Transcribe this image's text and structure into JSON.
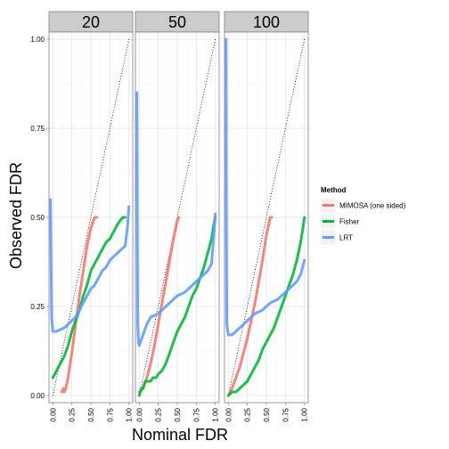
{
  "chart_data": {
    "type": "line",
    "xlabel": "Nominal FDR",
    "ylabel": "Observed FDR",
    "xlim": [
      0,
      1
    ],
    "ylim": [
      0,
      1
    ],
    "x_ticks": [
      "0.00",
      "0.25",
      "0.50",
      "0.75",
      "1.00"
    ],
    "y_ticks": [
      "0.00",
      "0.25",
      "0.50",
      "0.75",
      "1.00"
    ],
    "reference_line": "y = x (dotted)",
    "grid": true,
    "legend": {
      "title": "Method",
      "position": "right",
      "entries": [
        "MIMOSA (one sided)",
        "Fisher",
        "LRT"
      ]
    },
    "colors": {
      "MIMOSA (one sided)": "#F8766D",
      "Fisher": "#00BA38",
      "LRT": "#619CFF"
    },
    "panels": [
      {
        "label": "20",
        "series": [
          {
            "name": "MIMOSA (one sided)",
            "points": [
              [
                0.12,
                0.01
              ],
              [
                0.14,
                0.02
              ],
              [
                0.15,
                0.01
              ],
              [
                0.17,
                0.02
              ],
              [
                0.2,
                0.05
              ],
              [
                0.25,
                0.12
              ],
              [
                0.3,
                0.2
              ],
              [
                0.35,
                0.28
              ],
              [
                0.4,
                0.35
              ],
              [
                0.45,
                0.42
              ],
              [
                0.5,
                0.47
              ],
              [
                0.55,
                0.5
              ],
              [
                0.58,
                0.5
              ]
            ]
          },
          {
            "name": "Fisher",
            "points": [
              [
                0.0,
                0.05
              ],
              [
                0.05,
                0.07
              ],
              [
                0.1,
                0.09
              ],
              [
                0.15,
                0.11
              ],
              [
                0.2,
                0.14
              ],
              [
                0.25,
                0.18
              ],
              [
                0.3,
                0.21
              ],
              [
                0.35,
                0.24
              ],
              [
                0.4,
                0.28
              ],
              [
                0.45,
                0.31
              ],
              [
                0.5,
                0.35
              ],
              [
                0.55,
                0.37
              ],
              [
                0.6,
                0.39
              ],
              [
                0.65,
                0.41
              ],
              [
                0.7,
                0.43
              ],
              [
                0.75,
                0.44
              ],
              [
                0.8,
                0.46
              ],
              [
                0.85,
                0.48
              ],
              [
                0.88,
                0.49
              ],
              [
                0.92,
                0.5
              ],
              [
                0.95,
                0.5
              ]
            ]
          },
          {
            "name": "LRT",
            "points": [
              [
                -0.03,
                0.55
              ],
              [
                -0.02,
                0.3
              ],
              [
                -0.015,
                0.22
              ],
              [
                0.0,
                0.18
              ],
              [
                0.05,
                0.18
              ],
              [
                0.1,
                0.185
              ],
              [
                0.15,
                0.19
              ],
              [
                0.2,
                0.2
              ],
              [
                0.25,
                0.21
              ],
              [
                0.3,
                0.22
              ],
              [
                0.35,
                0.24
              ],
              [
                0.4,
                0.26
              ],
              [
                0.45,
                0.28
              ],
              [
                0.5,
                0.3
              ],
              [
                0.55,
                0.31
              ],
              [
                0.6,
                0.33
              ],
              [
                0.65,
                0.35
              ],
              [
                0.7,
                0.36
              ],
              [
                0.75,
                0.38
              ],
              [
                0.8,
                0.39
              ],
              [
                0.85,
                0.4
              ],
              [
                0.9,
                0.41
              ],
              [
                0.95,
                0.42
              ],
              [
                0.98,
                0.47
              ],
              [
                1.0,
                0.53
              ]
            ]
          }
        ]
      },
      {
        "label": "50",
        "series": [
          {
            "name": "MIMOSA (one sided)",
            "points": [
              [
                0.0,
                0.01
              ],
              [
                0.05,
                0.02
              ],
              [
                0.1,
                0.05
              ],
              [
                0.15,
                0.09
              ],
              [
                0.2,
                0.14
              ],
              [
                0.25,
                0.2
              ],
              [
                0.3,
                0.26
              ],
              [
                0.35,
                0.32
              ],
              [
                0.4,
                0.38
              ],
              [
                0.45,
                0.44
              ],
              [
                0.5,
                0.49
              ],
              [
                0.52,
                0.5
              ]
            ]
          },
          {
            "name": "Fisher",
            "points": [
              [
                0.0,
                0.0
              ],
              [
                0.03,
                0.02
              ],
              [
                0.05,
                0.02
              ],
              [
                0.08,
                0.04
              ],
              [
                0.1,
                0.04
              ],
              [
                0.15,
                0.04
              ],
              [
                0.18,
                0.05
              ],
              [
                0.22,
                0.05
              ],
              [
                0.25,
                0.06
              ],
              [
                0.3,
                0.07
              ],
              [
                0.35,
                0.09
              ],
              [
                0.4,
                0.12
              ],
              [
                0.45,
                0.15
              ],
              [
                0.5,
                0.18
              ],
              [
                0.55,
                0.2
              ],
              [
                0.6,
                0.22
              ],
              [
                0.65,
                0.25
              ],
              [
                0.7,
                0.28
              ],
              [
                0.75,
                0.3
              ],
              [
                0.8,
                0.33
              ],
              [
                0.85,
                0.36
              ],
              [
                0.9,
                0.4
              ],
              [
                0.95,
                0.44
              ],
              [
                0.98,
                0.48
              ],
              [
                1.0,
                0.5
              ]
            ]
          },
          {
            "name": "LRT",
            "points": [
              [
                -0.03,
                0.85
              ],
              [
                -0.025,
                0.5
              ],
              [
                -0.02,
                0.2
              ],
              [
                -0.01,
                0.15
              ],
              [
                0.0,
                0.14
              ],
              [
                0.05,
                0.17
              ],
              [
                0.1,
                0.2
              ],
              [
                0.15,
                0.22
              ],
              [
                0.2,
                0.225
              ],
              [
                0.25,
                0.23
              ],
              [
                0.3,
                0.24
              ],
              [
                0.35,
                0.25
              ],
              [
                0.4,
                0.26
              ],
              [
                0.45,
                0.27
              ],
              [
                0.5,
                0.28
              ],
              [
                0.55,
                0.285
              ],
              [
                0.6,
                0.29
              ],
              [
                0.65,
                0.3
              ],
              [
                0.7,
                0.31
              ],
              [
                0.75,
                0.32
              ],
              [
                0.8,
                0.33
              ],
              [
                0.85,
                0.34
              ],
              [
                0.9,
                0.35
              ],
              [
                0.95,
                0.37
              ],
              [
                0.98,
                0.45
              ],
              [
                1.0,
                0.51
              ]
            ]
          }
        ]
      },
      {
        "label": "100",
        "series": [
          {
            "name": "MIMOSA (one sided)",
            "points": [
              [
                0.0,
                0.0
              ],
              [
                0.05,
                0.02
              ],
              [
                0.1,
                0.05
              ],
              [
                0.15,
                0.08
              ],
              [
                0.2,
                0.12
              ],
              [
                0.25,
                0.16
              ],
              [
                0.3,
                0.21
              ],
              [
                0.35,
                0.26
              ],
              [
                0.4,
                0.32
              ],
              [
                0.45,
                0.38
              ],
              [
                0.5,
                0.45
              ],
              [
                0.55,
                0.5
              ],
              [
                0.57,
                0.5
              ]
            ]
          },
          {
            "name": "Fisher",
            "points": [
              [
                0.0,
                0.0
              ],
              [
                0.05,
                0.01
              ],
              [
                0.1,
                0.01
              ],
              [
                0.15,
                0.02
              ],
              [
                0.2,
                0.03
              ],
              [
                0.25,
                0.04
              ],
              [
                0.3,
                0.06
              ],
              [
                0.35,
                0.08
              ],
              [
                0.4,
                0.1
              ],
              [
                0.45,
                0.13
              ],
              [
                0.5,
                0.15
              ],
              [
                0.55,
                0.17
              ],
              [
                0.6,
                0.19
              ],
              [
                0.65,
                0.22
              ],
              [
                0.7,
                0.25
              ],
              [
                0.75,
                0.28
              ],
              [
                0.8,
                0.31
              ],
              [
                0.85,
                0.34
              ],
              [
                0.9,
                0.38
              ],
              [
                0.95,
                0.43
              ],
              [
                0.98,
                0.47
              ],
              [
                1.0,
                0.5
              ]
            ]
          },
          {
            "name": "LRT",
            "points": [
              [
                -0.03,
                1.0
              ],
              [
                -0.025,
                0.5
              ],
              [
                -0.02,
                0.2
              ],
              [
                0.0,
                0.17
              ],
              [
                0.05,
                0.17
              ],
              [
                0.1,
                0.18
              ],
              [
                0.15,
                0.19
              ],
              [
                0.2,
                0.2
              ],
              [
                0.25,
                0.21
              ],
              [
                0.3,
                0.22
              ],
              [
                0.35,
                0.23
              ],
              [
                0.4,
                0.235
              ],
              [
                0.45,
                0.24
              ],
              [
                0.5,
                0.25
              ],
              [
                0.55,
                0.26
              ],
              [
                0.6,
                0.265
              ],
              [
                0.65,
                0.27
              ],
              [
                0.7,
                0.28
              ],
              [
                0.75,
                0.29
              ],
              [
                0.8,
                0.3
              ],
              [
                0.85,
                0.31
              ],
              [
                0.9,
                0.32
              ],
              [
                0.95,
                0.34
              ],
              [
                1.0,
                0.38
              ]
            ]
          }
        ]
      }
    ]
  }
}
